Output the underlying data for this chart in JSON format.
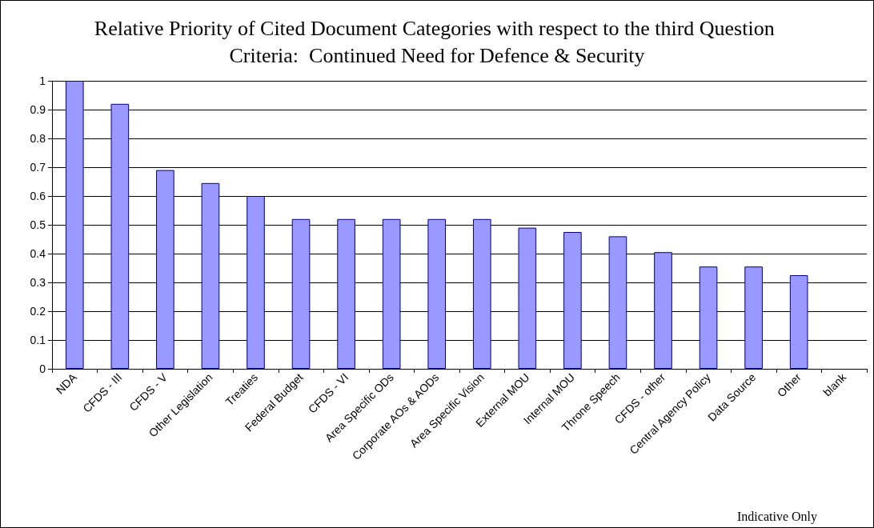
{
  "chart_data": {
    "type": "bar",
    "title": "Relative Priority of Cited Document Categories with respect to the third Question Criteria:  Continued Need for Defence & Security",
    "categories": [
      "NDA",
      "CFDS - III",
      "CFDS - V",
      "Other Legislation",
      "Treaties",
      "Federal Budget",
      "CFDS - VI",
      "Area Specific ODs",
      "Corporate AOs & AODs",
      "Area Specific Vision",
      "External MOU",
      "Internal MOU",
      "Throne Speech",
      "CFDS - other",
      "Central Agency Policy",
      "Data Source",
      "Other",
      "blank"
    ],
    "values": [
      1,
      0.92,
      0.69,
      0.645,
      0.6,
      0.52,
      0.52,
      0.52,
      0.52,
      0.52,
      0.49,
      0.475,
      0.46,
      0.405,
      0.355,
      0.355,
      0.325,
      null
    ],
    "color": "#9999ff",
    "ylim": [
      0,
      1
    ],
    "yticks": [
      0,
      0.1,
      0.2,
      0.3,
      0.4,
      0.5,
      0.6,
      0.7,
      0.8,
      0.9,
      1
    ],
    "grid": "y",
    "annotations": [
      "Indicative Only"
    ]
  }
}
